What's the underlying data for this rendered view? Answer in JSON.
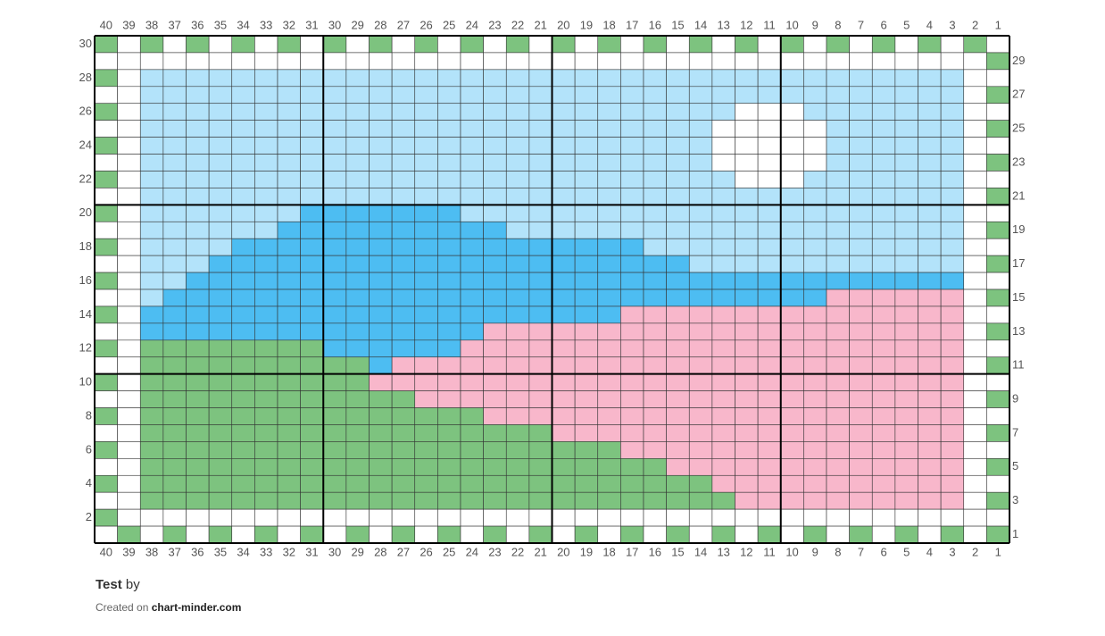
{
  "grid": {
    "column_labels": [
      40,
      39,
      38,
      37,
      36,
      35,
      34,
      33,
      32,
      31,
      30,
      29,
      28,
      27,
      26,
      25,
      24,
      23,
      22,
      21,
      20,
      19,
      18,
      17,
      16,
      15,
      14,
      13,
      12,
      11,
      10,
      9,
      8,
      7,
      6,
      5,
      4,
      3,
      2,
      1
    ],
    "row_labels": [
      30,
      29,
      28,
      27,
      26,
      25,
      24,
      23,
      22,
      21,
      20,
      19,
      18,
      17,
      16,
      15,
      14,
      13,
      12,
      11,
      10,
      9,
      8,
      7,
      6,
      5,
      4,
      3,
      2,
      1
    ],
    "palette": {
      "w": "#ffffff",
      "g": "#7dc37f",
      "l": "#b3e3fa",
      "b": "#4dbdf2",
      "p": "#f8b7cb"
    },
    "rows": [
      "gwgwgwgwgwgwgwgwgwgwgwgwgwgwgwgwgwgwgwgw",
      "wwwwwwwwwwwwwwwwwwwwwwwwwwwwwwwwwwwwwwwg",
      "gwllllllllllllllllllllllllllllllllllllww",
      "wwllllllllllllllllllllllllllllllllllllwg",
      "gwllllllllllllllllllllllllllwwwlllllllww",
      "wwlllllllllllllllllllllllllwwwwwllllllwg",
      "gwlllllllllllllllllllllllllwwwwwllllllww",
      "wwlllllllllllllllllllllllllwwwwwllllllwg",
      "gwllllllllllllllllllllllllllwwwlllllllww",
      "wwllllllllllllllllllllllllllllllllllllwg",
      "gwlllllllbbbbbbbllllllllllllllllllllllww",
      "wwllllllbbbbbbbbbbllllllllllllllllllllwg",
      "gwllllbbbbbbbbbbbbbbbbbbllllllllllllllww",
      "wwlllbbbbbbbbbbbbbbbbbbbbbllllllllllllwg",
      "gwllbbbbbbbbbbbbbbbbbbbbbbbbbbbbbbbbbbww",
      "wwlbbbbbbbbbbbbbbbbbbbbbbbbbbbbbppppppwg",
      "gwbbbbbbbbbbbbbbbbbbbbbpppppppppppppppww",
      "wwbbbbbbbbbbbbbbbpppppppppppppppppppppwg",
      "gwggggggggbbbbbbppppppppppppppppppppppww",
      "wwggggggggggbpppppppppppppppppppppppppwg",
      "gwggggggggggppppppppppppppppppppppppppww",
      "wwggggggggggggppppppppppppppppppppppppwg",
      "gwgggggggggggggggpppppppppppppppppppppww",
      "wwggggggggggggggggggppppppppppppppppppwg",
      "gwgggggggggggggggggggggpppppppppppppppww",
      "wwgggggggggggggggggggggggpppppppppppppwg",
      "gwgggggggggggggggggggggggggpppppppppppww",
      "wwggggggggggggggggggggggggggppppppppppwg",
      "gwwwwwwwwwwwwwwwwwwwwwwwwwwwwwwwwwwwwwww",
      "wgwgwgwgwgwgwgwgwgwgwgwgwgwgwgwgwgwgwgwg"
    ]
  },
  "footer": {
    "title": "Test",
    "byline": "by",
    "created": "Created on",
    "site": "chart-minder.com"
  }
}
